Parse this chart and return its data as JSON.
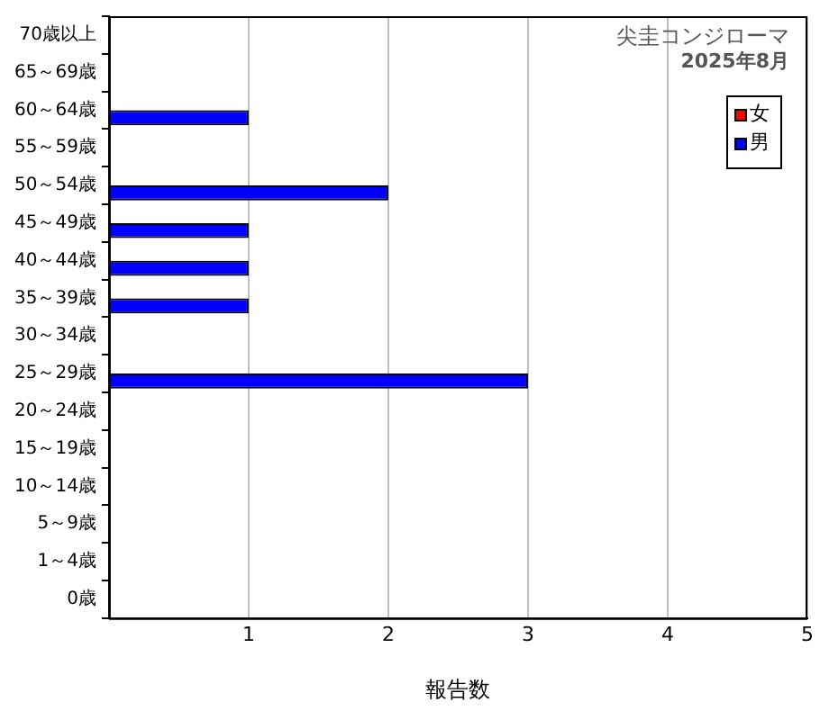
{
  "chart_data": {
    "type": "bar",
    "orientation": "horizontal",
    "title": "尖圭コンジローマ",
    "subtitle": "2025年8月",
    "xlabel": "報告数",
    "categories": [
      "70歳以上",
      "65～69歳",
      "60～64歳",
      "55～59歳",
      "50～54歳",
      "45～49歳",
      "40～44歳",
      "35～39歳",
      "30～34歳",
      "25～29歳",
      "20～24歳",
      "15～19歳",
      "10～14歳",
      "5～9歳",
      "1～4歳",
      "0歳"
    ],
    "series": [
      {
        "name": "女",
        "color": "#ff0000",
        "values": [
          0,
          0,
          0,
          0,
          0,
          0,
          0,
          0,
          0,
          0,
          0,
          0,
          0,
          0,
          0,
          0
        ]
      },
      {
        "name": "男",
        "color": "#0000ff",
        "values": [
          0,
          0,
          1,
          0,
          2,
          1,
          1,
          1,
          0,
          3,
          0,
          0,
          0,
          0,
          0,
          0
        ]
      }
    ],
    "xlim": [
      0,
      5
    ],
    "xticks": [
      {
        "value": 0,
        "label": null
      },
      1,
      2,
      3,
      4,
      5
    ],
    "grid": "x",
    "legend": "top right"
  }
}
